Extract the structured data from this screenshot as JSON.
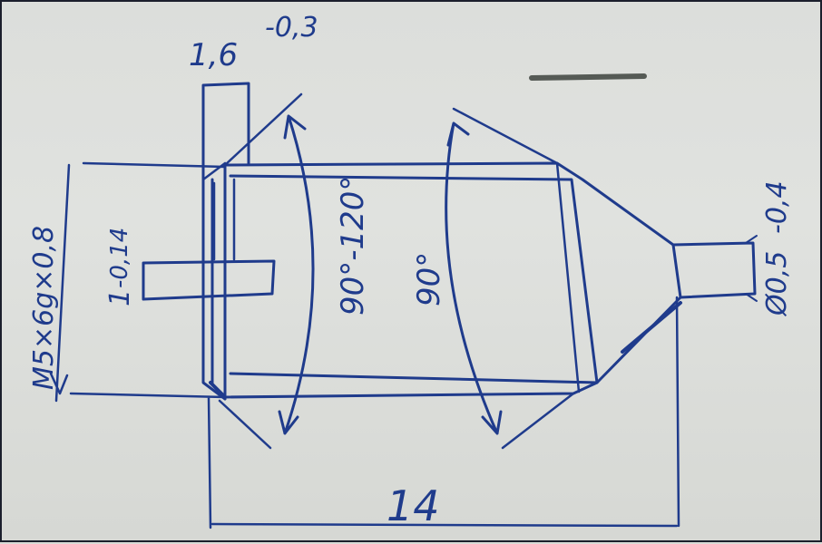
{
  "drawing": {
    "ink_color": "#1f3b8c",
    "paper_color": "#dcdedb"
  },
  "dimensions": {
    "thickness": "1,6",
    "thickness_tol": "-0,3",
    "thread": "M5×6g×0,8",
    "slot": "1",
    "slot_tol": "-0,14",
    "angle_chamfer": "90°-120°",
    "angle_cone": "90°",
    "tip_diameter": "Ø0,5",
    "tip_tol": "-0,4",
    "length": "14"
  }
}
